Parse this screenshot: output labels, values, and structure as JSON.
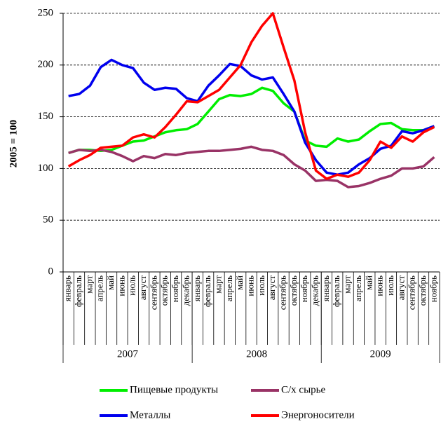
{
  "chart_data": {
    "type": "line",
    "ylabel": "2005 = 100",
    "categories": [
      "январь",
      "февраль",
      "март",
      "апрель",
      "май",
      "июнь",
      "июль",
      "август",
      "сентябрь",
      "октябрь",
      "ноябрь",
      "декабрь",
      "январь",
      "февраль",
      "март",
      "апрель",
      "май",
      "июнь",
      "июль",
      "август",
      "сентябрь",
      "октябрь",
      "ноябрь",
      "декабрь",
      "январь",
      "февраль",
      "март",
      "апрель",
      "май",
      "июнь",
      "июль",
      "август",
      "сентябрь",
      "октябрь",
      "ноябрь"
    ],
    "years": [
      "2007",
      "2008",
      "2009"
    ],
    "ylim": [
      0,
      250
    ],
    "yticks": [
      0,
      50,
      100,
      150,
      200,
      250
    ],
    "grid": true,
    "series": [
      {
        "name": "Пищевые продукты",
        "color": "#00ee00",
        "values": [
          115,
          118,
          118,
          117,
          118,
          122,
          126,
          127,
          131,
          135,
          137,
          138,
          143,
          155,
          167,
          171,
          170,
          172,
          178,
          175,
          163,
          155,
          127,
          122,
          121,
          129,
          126,
          128,
          136,
          143,
          144,
          138,
          137,
          137,
          141
        ]
      },
      {
        "name": "С/х сырье",
        "color": "#993366",
        "values": [
          115,
          118,
          117,
          118,
          116,
          112,
          107,
          112,
          110,
          114,
          113,
          115,
          116,
          117,
          117,
          118,
          119,
          121,
          118,
          117,
          113,
          104,
          98,
          88,
          89,
          88,
          82,
          83,
          86,
          90,
          93,
          100,
          100,
          102,
          111
        ]
      },
      {
        "name": "Металлы",
        "color": "#0000ee",
        "values": [
          170,
          172,
          180,
          198,
          205,
          200,
          197,
          183,
          176,
          178,
          177,
          168,
          165,
          180,
          190,
          201,
          199,
          190,
          186,
          188,
          172,
          155,
          125,
          108,
          96,
          94,
          96,
          104,
          110,
          119,
          122,
          136,
          134,
          137,
          141
        ]
      },
      {
        "name": "Энергоносители",
        "color": "#ff0000",
        "values": [
          102,
          108,
          113,
          120,
          121,
          122,
          130,
          133,
          130,
          140,
          152,
          165,
          164,
          170,
          176,
          188,
          200,
          222,
          238,
          250,
          217,
          185,
          135,
          98,
          90,
          94,
          92,
          96,
          108,
          126,
          120,
          131,
          126,
          135,
          140
        ]
      }
    ]
  }
}
